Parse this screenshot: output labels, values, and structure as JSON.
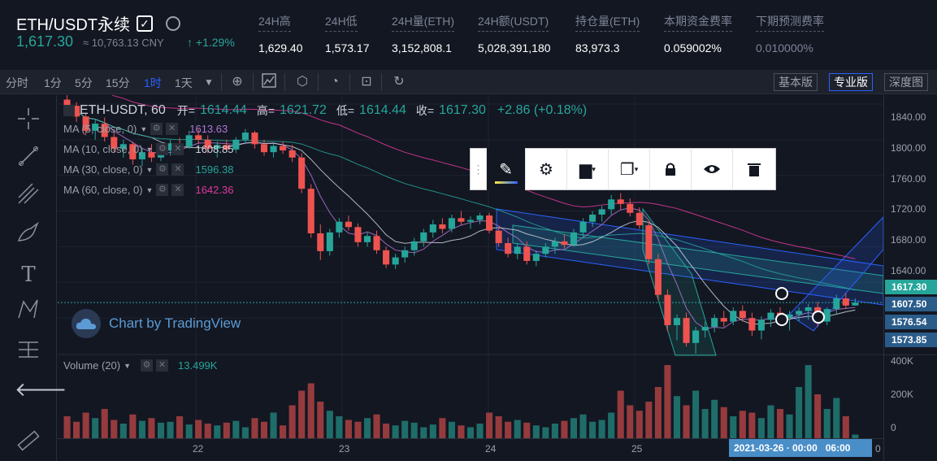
{
  "header": {
    "symbol": "ETH/USDT永续",
    "checkbox_mark": "✓",
    "last_price": "1,617.30",
    "cny": "≈ 10,763.13 CNY",
    "change": "↑ +1.29%",
    "stats": [
      {
        "label": "24H高",
        "value": "1,629.40"
      },
      {
        "label": "24H低",
        "value": "1,573.17"
      },
      {
        "label": "24H量(ETH)",
        "value": "3,152,808.1"
      },
      {
        "label": "24H额(USDT)",
        "value": "5,028,391,180"
      },
      {
        "label": "持仓量(ETH)",
        "value": "83,973.3"
      },
      {
        "label": "本期资金费率",
        "value": "0.059002%"
      },
      {
        "label": "下期预测费率",
        "value": "0.010000%"
      }
    ]
  },
  "toolbar": {
    "timeframes": [
      "分时",
      "1分",
      "5分",
      "15分",
      "1时",
      "1天"
    ],
    "active_timeframe": "1时",
    "more_icon": "chevron-down-icon",
    "icons": [
      "plus-circle-icon",
      "indicators-icon",
      "settings-hex-icon",
      "clock-icon",
      "screenshot-icon",
      "undo-icon"
    ],
    "views": [
      "基本版",
      "专业版",
      "深度图"
    ],
    "active_view": "专业版"
  },
  "legend": {
    "title": "ETH-USDT, 60",
    "open_label": "开=",
    "open": "1614.44",
    "high_label": "高=",
    "high": "1621.72",
    "low_label": "低=",
    "low": "1614.44",
    "close_label": "收=",
    "close": "1617.30",
    "change": "+2.86 (+0.18%)",
    "mas": [
      {
        "label": "MA (5, close, 0)",
        "value": "1613.63",
        "color": "#b175d6"
      },
      {
        "label": "MA (10, close, 0)",
        "value": "1608.85",
        "color": "#cfd3dc"
      },
      {
        "label": "MA (30, close, 0)",
        "value": "1596.38",
        "color": "#26a69a"
      },
      {
        "label": "MA (60, close, 0)",
        "value": "1642.36",
        "color": "#e0389c"
      }
    ],
    "volume_label": "Volume (20)",
    "volume_value": "13.499K"
  },
  "watermark": "Chart by TradingView",
  "price_axis": {
    "ticks": [
      "1840.00",
      "1800.00",
      "1760.00",
      "1720.00",
      "1680.00",
      "1640.00"
    ],
    "labels": [
      {
        "value": "1617.30",
        "color": "#26a69a"
      },
      {
        "value": "1607.50",
        "color": "#2a5c8a"
      },
      {
        "value": "1576.54",
        "color": "#2a5c8a"
      },
      {
        "value": "1573.85",
        "color": "#2a5c8a"
      }
    ],
    "volume_ticks": [
      "400K",
      "200K",
      "0"
    ]
  },
  "time_axis": {
    "ticks": [
      "22",
      "23",
      "24",
      "25"
    ],
    "cursor_label": "2021-03-26 · 00:00",
    "end_label": "06:00",
    "right_label": "0"
  },
  "floating_toolbar": [
    "drag-handle-icon",
    "pencil-icon",
    "settings-gear-icon",
    "template-icon",
    "clone-icon",
    "lock-icon",
    "eye-icon",
    "trash-icon"
  ],
  "sidebar_icons": [
    "crosshair-icon",
    "trendline-icon",
    "pitchfork-icon",
    "brush-icon",
    "text-icon",
    "pattern-icon",
    "measure-icon",
    "arrow-left-icon",
    "ruler-icon"
  ],
  "colors": {
    "up": "#26a69a",
    "down": "#ef5350",
    "accent": "#2962ff",
    "bg": "#131722"
  },
  "chart_data": {
    "type": "candlestick",
    "ylim": [
      1560,
      1850
    ],
    "candles": [
      [
        1845,
        1850,
        1832,
        1838
      ],
      [
        1838,
        1842,
        1820,
        1826
      ],
      [
        1826,
        1830,
        1805,
        1810
      ],
      [
        1810,
        1822,
        1800,
        1818
      ],
      [
        1818,
        1825,
        1798,
        1803
      ],
      [
        1803,
        1808,
        1785,
        1790
      ],
      [
        1790,
        1800,
        1780,
        1795
      ],
      [
        1795,
        1798,
        1772,
        1778
      ],
      [
        1778,
        1790,
        1770,
        1786
      ],
      [
        1786,
        1795,
        1775,
        1780
      ],
      [
        1780,
        1792,
        1776,
        1788
      ],
      [
        1788,
        1800,
        1782,
        1796
      ],
      [
        1796,
        1802,
        1788,
        1792
      ],
      [
        1792,
        1810,
        1790,
        1805
      ],
      [
        1805,
        1812,
        1795,
        1800
      ],
      [
        1800,
        1805,
        1785,
        1790
      ],
      [
        1790,
        1798,
        1780,
        1794
      ],
      [
        1794,
        1800,
        1786,
        1789
      ],
      [
        1789,
        1803,
        1785,
        1800
      ],
      [
        1800,
        1812,
        1795,
        1808
      ],
      [
        1808,
        1810,
        1790,
        1795
      ],
      [
        1795,
        1800,
        1782,
        1786
      ],
      [
        1786,
        1796,
        1780,
        1793
      ],
      [
        1793,
        1798,
        1784,
        1788
      ],
      [
        1788,
        1794,
        1775,
        1780
      ],
      [
        1780,
        1785,
        1740,
        1745
      ],
      [
        1745,
        1750,
        1690,
        1695
      ],
      [
        1695,
        1705,
        1665,
        1675
      ],
      [
        1675,
        1700,
        1670,
        1696
      ],
      [
        1696,
        1712,
        1690,
        1708
      ],
      [
        1708,
        1715,
        1698,
        1702
      ],
      [
        1702,
        1706,
        1680,
        1685
      ],
      [
        1685,
        1696,
        1680,
        1692
      ],
      [
        1692,
        1698,
        1672,
        1676
      ],
      [
        1676,
        1680,
        1656,
        1660
      ],
      [
        1660,
        1672,
        1655,
        1668
      ],
      [
        1668,
        1680,
        1662,
        1676
      ],
      [
        1676,
        1690,
        1670,
        1686
      ],
      [
        1686,
        1700,
        1680,
        1696
      ],
      [
        1696,
        1710,
        1690,
        1705
      ],
      [
        1705,
        1712,
        1695,
        1700
      ],
      [
        1700,
        1716,
        1696,
        1712
      ],
      [
        1712,
        1720,
        1704,
        1708
      ],
      [
        1708,
        1714,
        1700,
        1710
      ],
      [
        1710,
        1718,
        1705,
        1715
      ],
      [
        1715,
        1718,
        1695,
        1698
      ],
      [
        1698,
        1702,
        1680,
        1684
      ],
      [
        1684,
        1690,
        1668,
        1672
      ],
      [
        1672,
        1684,
        1666,
        1680
      ],
      [
        1680,
        1686,
        1660,
        1664
      ],
      [
        1664,
        1676,
        1658,
        1672
      ],
      [
        1672,
        1684,
        1668,
        1680
      ],
      [
        1680,
        1690,
        1672,
        1686
      ],
      [
        1686,
        1694,
        1678,
        1682
      ],
      [
        1682,
        1700,
        1680,
        1696
      ],
      [
        1696,
        1712,
        1690,
        1708
      ],
      [
        1708,
        1720,
        1702,
        1716
      ],
      [
        1716,
        1726,
        1708,
        1722
      ],
      [
        1722,
        1738,
        1716,
        1733
      ],
      [
        1733,
        1740,
        1722,
        1728
      ],
      [
        1728,
        1734,
        1714,
        1718
      ],
      [
        1718,
        1724,
        1700,
        1704
      ],
      [
        1704,
        1708,
        1660,
        1666
      ],
      [
        1666,
        1672,
        1620,
        1626
      ],
      [
        1626,
        1632,
        1585,
        1592
      ],
      [
        1592,
        1604,
        1575,
        1600
      ],
      [
        1600,
        1606,
        1568,
        1572
      ],
      [
        1572,
        1590,
        1560,
        1586
      ],
      [
        1586,
        1596,
        1578,
        1590
      ],
      [
        1590,
        1604,
        1584,
        1600
      ],
      [
        1600,
        1608,
        1590,
        1596
      ],
      [
        1596,
        1612,
        1592,
        1608
      ],
      [
        1608,
        1614,
        1596,
        1600
      ],
      [
        1600,
        1606,
        1580,
        1586
      ],
      [
        1586,
        1602,
        1576,
        1598
      ],
      [
        1598,
        1610,
        1590,
        1606
      ],
      [
        1606,
        1612,
        1594,
        1600
      ],
      [
        1600,
        1608,
        1586,
        1604
      ],
      [
        1604,
        1612,
        1596,
        1608
      ],
      [
        1608,
        1616,
        1598,
        1612
      ],
      [
        1612,
        1618,
        1590,
        1596
      ],
      [
        1596,
        1612,
        1592,
        1610
      ],
      [
        1610,
        1626,
        1604,
        1622
      ],
      [
        1622,
        1628,
        1610,
        1614
      ],
      [
        1614,
        1622,
        1614,
        1617.3
      ]
    ],
    "volumes": [
      120,
      90,
      140,
      110,
      160,
      100,
      80,
      130,
      95,
      110,
      85,
      90,
      120,
      75,
      100,
      80,
      70,
      85,
      95,
      60,
      110,
      90,
      140,
      70,
      180,
      260,
      300,
      200,
      150,
      120,
      100,
      90,
      110,
      130,
      80,
      70,
      95,
      85,
      60,
      75,
      110,
      90,
      70,
      60,
      80,
      140,
      120,
      90,
      100,
      85,
      70,
      60,
      80,
      95,
      110,
      130,
      90,
      100,
      140,
      260,
      180,
      150,
      200,
      280,
      400,
      230,
      180,
      260,
      160,
      210,
      170,
      120,
      150,
      140,
      110,
      180,
      160,
      130,
      280,
      400,
      240,
      160,
      220,
      120,
      20
    ]
  }
}
